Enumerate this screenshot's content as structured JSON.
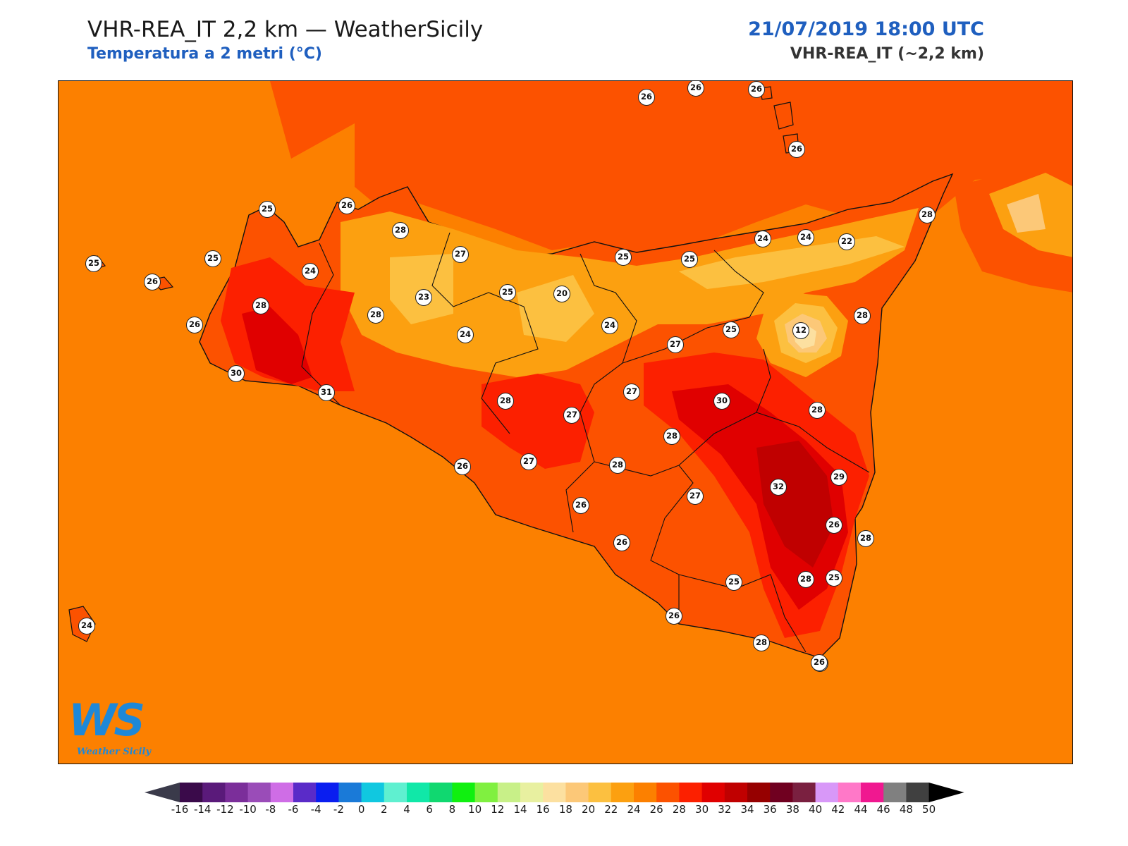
{
  "header": {
    "title": "VHR-REA_IT 2,2 km — WeatherSicily",
    "subtitle": "Temperatura a 2 metri (°C)",
    "datetime": "21/07/2019 18:00 UTC",
    "model": "VHR-REA_IT (~2,2 km)"
  },
  "logo": {
    "mark": "WS",
    "text": "Weather Sicily"
  },
  "colorbar": {
    "ticks": [
      "-16",
      "-14",
      "-12",
      "-10",
      "-8",
      "-6",
      "-4",
      "-2",
      "0",
      "2",
      "4",
      "6",
      "8",
      "10",
      "12",
      "14",
      "16",
      "18",
      "20",
      "22",
      "24",
      "26",
      "28",
      "30",
      "32",
      "34",
      "36",
      "38",
      "40",
      "42",
      "44",
      "46",
      "48",
      "50"
    ],
    "colors": [
      "#3a0a4a",
      "#5a1a7a",
      "#7b2e9a",
      "#9a4cb8",
      "#cf6de6",
      "#5a2bc8",
      "#0a1ef0",
      "#1a7ad8",
      "#10c8e0",
      "#5ff0d0",
      "#10e8a8",
      "#10d870",
      "#10f010",
      "#80f040",
      "#c8f088",
      "#e8f0a0",
      "#fce0a0",
      "#fcc878",
      "#fcc040",
      "#fca010",
      "#fc8000",
      "#fc5200",
      "#fc2000",
      "#e00000",
      "#c00000",
      "#960000",
      "#700020",
      "#7a2040",
      "#d898f8",
      "#ff78c8",
      "#f01890",
      "#808080",
      "#404040"
    ],
    "extend_low_color": "#3a3a4a",
    "extend_high_color": "#000000"
  },
  "colors": {
    "sea": "#fc8000",
    "tyrrhenian": "#fc5200",
    "land_warm": "#fc5200",
    "land_hot": "#fc2000",
    "land_hotter": "#e00000",
    "land_hottest": "#c00000",
    "land_mild": "#fca010",
    "land_cool": "#fcc040",
    "land_cooler": "#fcc878",
    "land_cold": "#fce0a0",
    "etna_peak": "#c8f088"
  },
  "stations": [
    {
      "v": "25"
    },
    {
      "v": "26"
    },
    {
      "v": "28"
    },
    {
      "v": "27"
    },
    {
      "v": "25"
    },
    {
      "v": "24"
    },
    {
      "v": "28"
    },
    {
      "v": "26"
    },
    {
      "v": "26"
    },
    {
      "v": "26"
    },
    {
      "v": "26"
    },
    {
      "v": "25"
    },
    {
      "v": "25"
    },
    {
      "v": "26"
    },
    {
      "v": "24"
    },
    {
      "v": "28"
    },
    {
      "v": "26"
    },
    {
      "v": "30"
    },
    {
      "v": "31"
    },
    {
      "v": "28"
    },
    {
      "v": "23"
    },
    {
      "v": "25"
    },
    {
      "v": "20"
    },
    {
      "v": "24"
    },
    {
      "v": "24"
    },
    {
      "v": "25"
    },
    {
      "v": "22"
    },
    {
      "v": "24"
    },
    {
      "v": "12"
    },
    {
      "v": "28"
    },
    {
      "v": "27"
    },
    {
      "v": "25"
    },
    {
      "v": "27"
    },
    {
      "v": "30"
    },
    {
      "v": "28"
    },
    {
      "v": "28"
    },
    {
      "v": "27"
    },
    {
      "v": "28"
    },
    {
      "v": "27"
    },
    {
      "v": "26"
    },
    {
      "v": "26"
    },
    {
      "v": "28"
    },
    {
      "v": "32"
    },
    {
      "v": "29"
    },
    {
      "v": "27"
    },
    {
      "v": "26"
    },
    {
      "v": "25"
    },
    {
      "v": "26"
    },
    {
      "v": "28"
    },
    {
      "v": "25"
    },
    {
      "v": "28"
    },
    {
      "v": "26"
    },
    {
      "v": "28"
    },
    {
      "v": "26"
    },
    {
      "v": "24"
    },
    {
      "v": "26"
    }
  ]
}
